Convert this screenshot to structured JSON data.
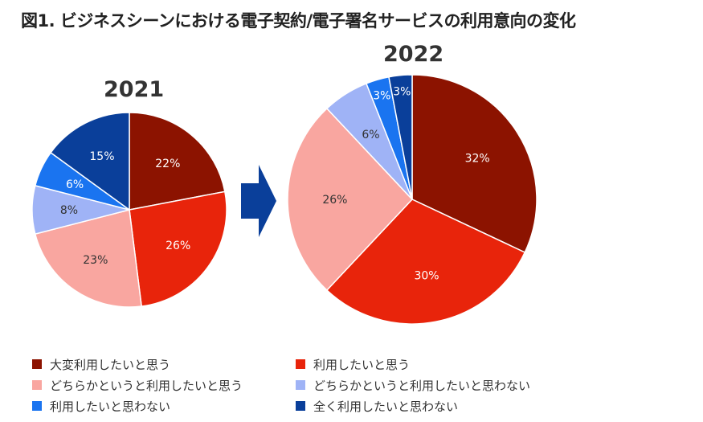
{
  "title": "図1. ビジネスシーンにおける電子契約/電子署名サービスの利用意向の変化",
  "chart_data": [
    {
      "type": "pie",
      "title": "2021",
      "categories": [
        "大変利用したいと思う",
        "利用したいと思う",
        "どちらかというと利用したいと思う",
        "どちらかというと利用したいと思わない",
        "利用したいと思わない",
        "全く利用したいと思わない"
      ],
      "values": [
        22,
        26,
        23,
        8,
        6,
        15
      ],
      "labels": [
        "22%",
        "26%",
        "23%",
        "8%",
        "6%",
        "15%"
      ]
    },
    {
      "type": "pie",
      "title": "2022",
      "categories": [
        "大変利用したいと思う",
        "利用したいと思う",
        "どちらかというと利用したいと思う",
        "どちらかというと利用したいと思わない",
        "利用したいと思わない",
        "全く利用したいと思わない"
      ],
      "values": [
        32,
        30,
        26,
        6,
        3,
        3
      ],
      "labels": [
        "32%",
        "30%",
        "26%",
        "6%",
        "3%",
        "3%"
      ]
    }
  ],
  "colors": [
    "#8c1300",
    "#e8240b",
    "#f9a6a0",
    "#9fb3f6",
    "#1a74f0",
    "#0a3f9a"
  ],
  "arrow_color": "#0a3f9a",
  "legend": [
    "大変利用したいと思う",
    "利用したいと思う",
    "どちらかというと利用したいと思う",
    "どちらかというと利用したいと思わない",
    "利用したいと思わない",
    "全く利用したいと思わない"
  ]
}
